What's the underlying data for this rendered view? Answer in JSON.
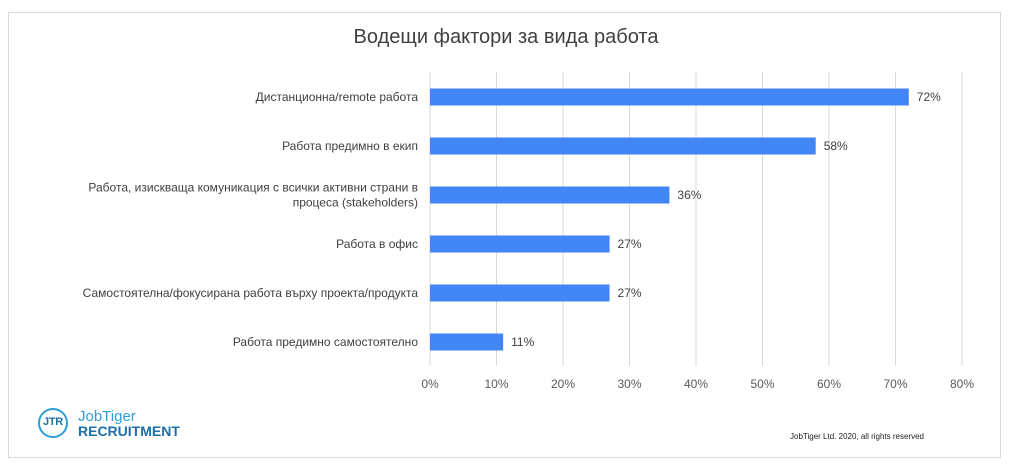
{
  "chart_data": {
    "type": "bar",
    "orientation": "horizontal",
    "title": "Водещи фактори за вида работа",
    "categories": [
      "Дистанционна/remote работа",
      "Работа предимно в екип",
      "Работа, изискваща комуникация с всички активни страни в процеса (stakeholders)",
      "Работа в офис",
      "Самостоятелна/фокусирана работа върху проекта/продукта",
      "Работа предимно самостоятелно"
    ],
    "category_lines": [
      [
        "Дистанционна/remote работа"
      ],
      [
        "Работа предимно в екип"
      ],
      [
        "Работа, изискваща комуникация с всички активни страни в",
        "процеса (stakeholders)"
      ],
      [
        "Работа в офис"
      ],
      [
        "Самостоятелна/фокусирана работа върху проекта/продукта"
      ],
      [
        "Работа предимно самостоятелно"
      ]
    ],
    "values": [
      72,
      58,
      36,
      27,
      27,
      11
    ],
    "value_labels": [
      "72%",
      "58%",
      "36%",
      "27%",
      "27%",
      "11%"
    ],
    "xlim": [
      0,
      80
    ],
    "xticks": [
      "0%",
      "10%",
      "20%",
      "30%",
      "40%",
      "50%",
      "60%",
      "70%",
      "80%"
    ],
    "grid": true,
    "bar_color": "#4285f4"
  },
  "logo": {
    "initials": "JTR",
    "name": "JobTiger",
    "sub": "RECRUITMENT"
  },
  "footer": "JobTiger Ltd. 2020, all rights reserved"
}
